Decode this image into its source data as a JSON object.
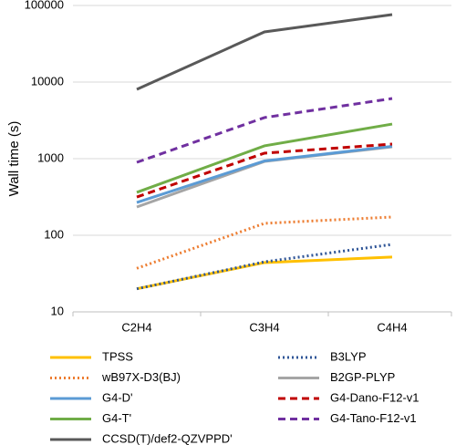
{
  "chart_data": {
    "type": "line",
    "y_label": "Wall time (s)",
    "categories": [
      "C2H4",
      "C3H4",
      "C4H4"
    ],
    "log_scale": true,
    "grid": true,
    "ylim": [
      10,
      100000
    ],
    "yticks": [
      10,
      100,
      1000,
      10000,
      100000
    ],
    "legend_position": "bottom",
    "series": [
      {
        "name": "TPSS",
        "color": "#FFC000",
        "dash": "solid",
        "values": [
          20,
          44,
          52
        ]
      },
      {
        "name": "B3LYP",
        "color": "#2F5597",
        "dash": "dotted",
        "values": [
          20,
          45,
          76
        ]
      },
      {
        "name": "wB97X-D3(BJ)",
        "color": "#ED7D31",
        "dash": "dotted",
        "values": [
          37,
          143,
          173
        ]
      },
      {
        "name": "B2GP-PLYP",
        "color": "#A5A5A5",
        "dash": "solid",
        "values": [
          234,
          920,
          1430
        ]
      },
      {
        "name": "G4-D'",
        "color": "#5B9BD5",
        "dash": "solid",
        "values": [
          268,
          935,
          1450
        ]
      },
      {
        "name": "G4-Dano-F12-v1",
        "color": "#C00000",
        "dash": "dashed",
        "values": [
          316,
          1180,
          1550
        ]
      },
      {
        "name": "G4-T'",
        "color": "#70AD47",
        "dash": "solid",
        "values": [
          363,
          1470,
          2830
        ]
      },
      {
        "name": "G4-Tano-F12-v1",
        "color": "#7030A0",
        "dash": "dashed",
        "values": [
          896,
          3440,
          6100
        ]
      },
      {
        "name": "CCSD(T)/def2-QZVPPD'",
        "color": "#595959",
        "dash": "solid",
        "values": [
          8040,
          45200,
          76000
        ]
      }
    ]
  }
}
